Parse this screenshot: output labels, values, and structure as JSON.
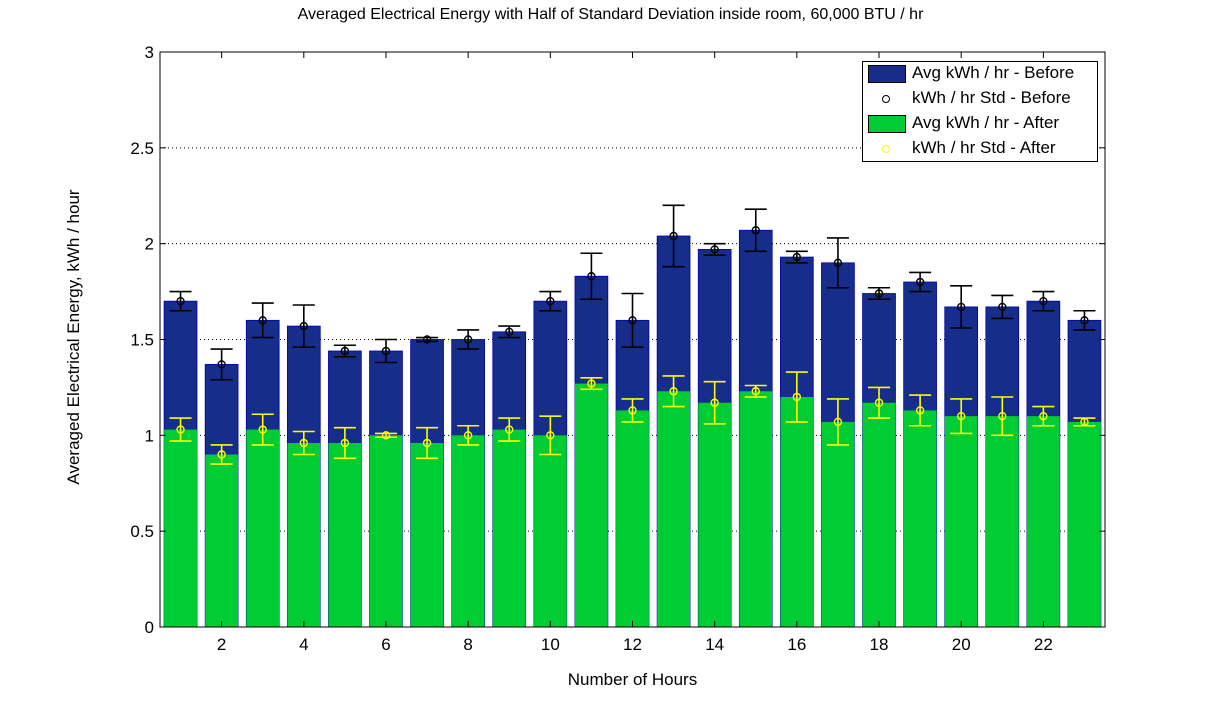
{
  "chart_data": {
    "type": "bar",
    "title": "Averaged Electrical Energy with Half of Standard Deviation inside room, 60,000 BTU / hr",
    "xlabel": "Number of Hours",
    "ylabel": "Averaged Electrical Energy, kWh / hour",
    "ylim": [
      0,
      3
    ],
    "xlim": [
      0.5,
      23.5
    ],
    "yticks": [
      0,
      0.5,
      1,
      1.5,
      2,
      2.5,
      3
    ],
    "ytick_labels": [
      "0",
      "0.5",
      "1",
      "1.5",
      "2",
      "2.5",
      "3"
    ],
    "xticks": [
      2,
      4,
      6,
      8,
      10,
      12,
      14,
      16,
      18,
      20,
      22
    ],
    "xtick_labels": [
      "2",
      "4",
      "6",
      "8",
      "10",
      "12",
      "14",
      "16",
      "18",
      "20",
      "22"
    ],
    "grid": "y dotted",
    "legend_position": "top-right",
    "x": [
      1,
      2,
      3,
      4,
      5,
      6,
      7,
      8,
      9,
      10,
      11,
      12,
      13,
      14,
      15,
      16,
      17,
      18,
      19,
      20,
      21,
      22,
      23
    ],
    "series": [
      {
        "name": "Avg kWh / hr - Before",
        "kind": "bar",
        "color": "#172d8c",
        "values": [
          1.7,
          1.37,
          1.6,
          1.57,
          1.44,
          1.44,
          1.5,
          1.5,
          1.54,
          1.7,
          1.83,
          1.6,
          2.04,
          1.97,
          2.07,
          1.93,
          1.9,
          1.74,
          1.8,
          1.67,
          1.67,
          1.7,
          1.6
        ]
      },
      {
        "name": "kWh / hr Std - Before",
        "kind": "errorbar",
        "color": "#000000",
        "values": [
          1.7,
          1.37,
          1.6,
          1.57,
          1.44,
          1.44,
          1.5,
          1.5,
          1.54,
          1.7,
          1.83,
          1.6,
          2.04,
          1.97,
          2.07,
          1.93,
          1.9,
          1.74,
          1.8,
          1.67,
          1.67,
          1.7,
          1.6
        ],
        "error": [
          0.05,
          0.08,
          0.09,
          0.11,
          0.03,
          0.06,
          0.01,
          0.05,
          0.03,
          0.05,
          0.12,
          0.14,
          0.16,
          0.03,
          0.11,
          0.03,
          0.13,
          0.03,
          0.05,
          0.11,
          0.06,
          0.05,
          0.05
        ]
      },
      {
        "name": "Avg kWh / hr - After",
        "kind": "bar",
        "color": "#00cc33",
        "values": [
          1.03,
          0.9,
          1.03,
          0.96,
          0.96,
          1.0,
          0.96,
          1.0,
          1.03,
          1.0,
          1.27,
          1.13,
          1.23,
          1.17,
          1.23,
          1.2,
          1.07,
          1.17,
          1.13,
          1.1,
          1.1,
          1.1,
          1.07
        ]
      },
      {
        "name": "kWh / hr Std - After",
        "kind": "errorbar",
        "color": "#ffff00",
        "values": [
          1.03,
          0.9,
          1.03,
          0.96,
          0.96,
          1.0,
          0.96,
          1.0,
          1.03,
          1.0,
          1.27,
          1.13,
          1.23,
          1.17,
          1.23,
          1.2,
          1.07,
          1.17,
          1.13,
          1.1,
          1.1,
          1.1,
          1.07
        ],
        "error": [
          0.06,
          0.05,
          0.08,
          0.06,
          0.08,
          0.01,
          0.08,
          0.05,
          0.06,
          0.1,
          0.03,
          0.06,
          0.08,
          0.11,
          0.03,
          0.13,
          0.12,
          0.08,
          0.08,
          0.09,
          0.1,
          0.05,
          0.02
        ]
      }
    ]
  }
}
